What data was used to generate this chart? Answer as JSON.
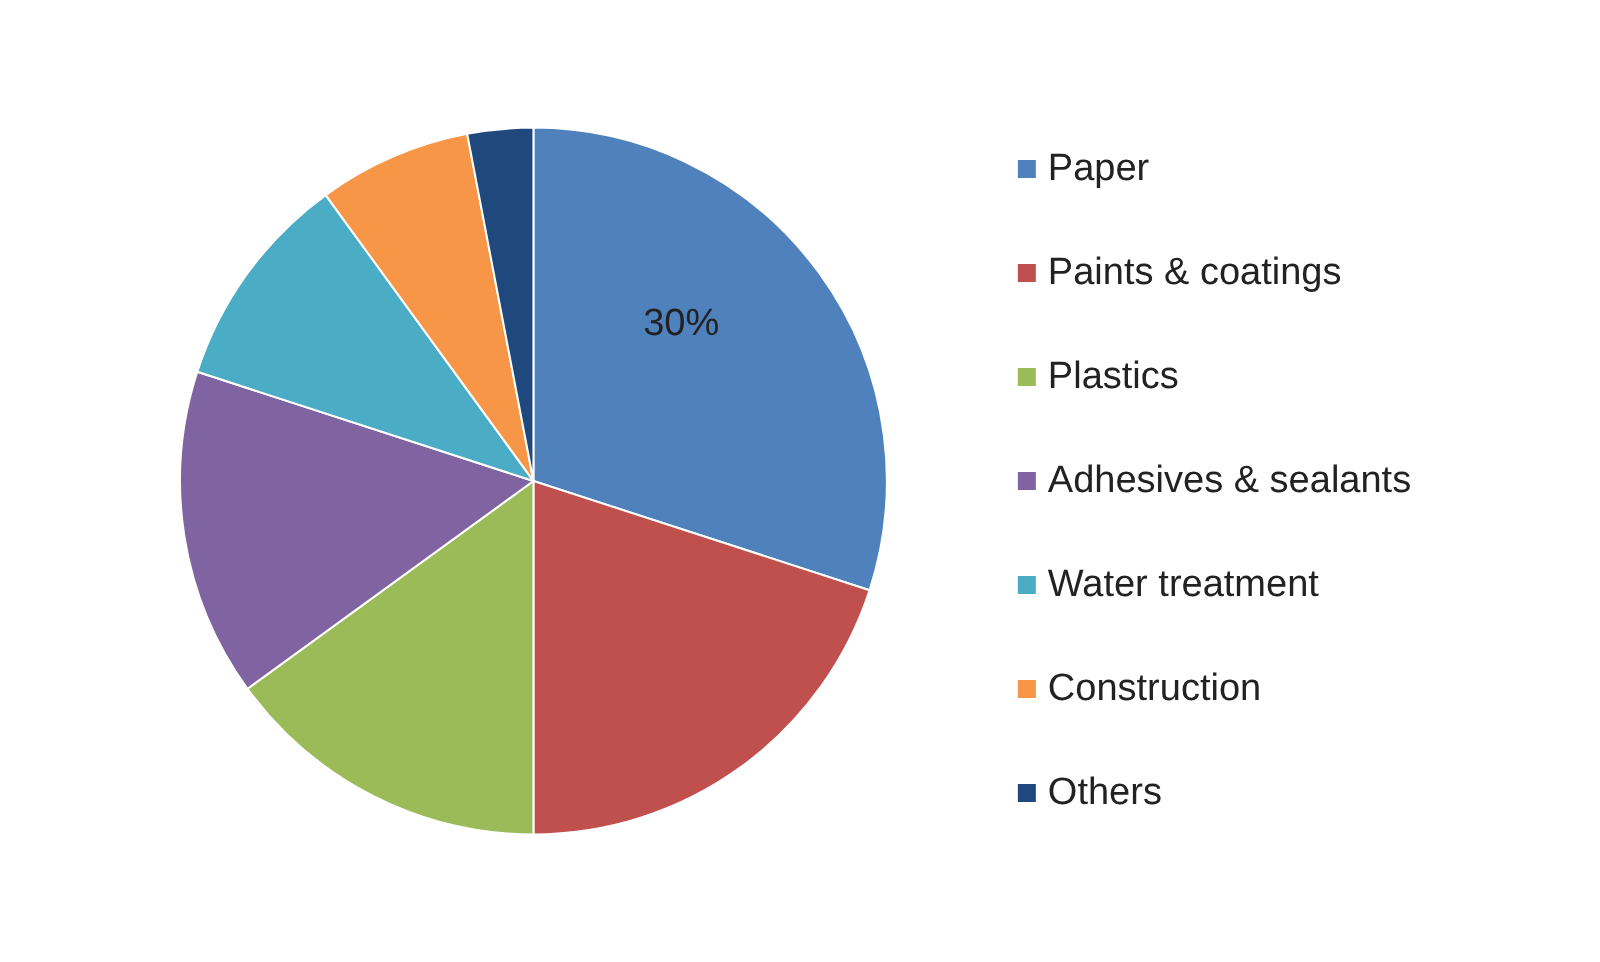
{
  "chart_data": {
    "type": "pie",
    "categories": [
      "Paper",
      "Paints & coatings",
      "Plastics",
      "Adhesives & sealants",
      "Water treatment",
      "Construction",
      "Others"
    ],
    "values": [
      30,
      20,
      15,
      15,
      10,
      7,
      3
    ],
    "colors": [
      "#4f81bd",
      "#c0504d",
      "#9bbb59",
      "#8064a2",
      "#4bacc6",
      "#f79646",
      "#1f497d"
    ],
    "value_labels": [
      "30%",
      null,
      null,
      null,
      null,
      null,
      null
    ],
    "legend": "right"
  }
}
